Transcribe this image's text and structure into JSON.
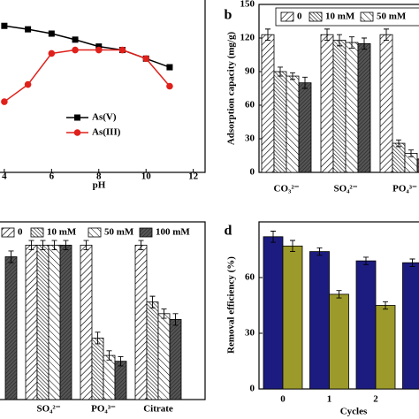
{
  "chart_data": [
    {
      "type": "line",
      "xlabel": "pH",
      "xlim": [
        1.5,
        12.5
      ],
      "xticks": [
        4,
        6,
        8,
        10,
        12
      ],
      "ylim": [
        0,
        100
      ],
      "x": [
        4,
        5,
        6,
        7,
        8,
        9,
        10,
        11
      ],
      "series": [
        {
          "name": "As(V)",
          "color": "#000000",
          "marker": "square",
          "values": [
            85,
            83,
            80.5,
            77,
            73,
            71,
            66,
            61
          ]
        },
        {
          "name": "As(III)",
          "color": "#e0201b",
          "marker": "circle",
          "values": [
            41,
            51,
            69,
            71,
            71,
            71,
            66,
            50
          ]
        }
      ]
    },
    {
      "type": "bar",
      "panel_label": "b",
      "ylabel": "Adsorption capacity (mg/g)",
      "ylim": [
        0,
        150
      ],
      "yticks": [
        0,
        30,
        60,
        90,
        120,
        150
      ],
      "categories": [
        "CO₃²⁻",
        "SO₄²⁻",
        "PO₄³⁻"
      ],
      "series": [
        {
          "name": "0",
          "color": "#ffffff",
          "pattern": "forward-hatch",
          "values": [
            123,
            123,
            123
          ],
          "errors": [
            5,
            5,
            5
          ]
        },
        {
          "name": "10 mM",
          "color": "#ffffff",
          "pattern": "dense-back-hatch",
          "values": [
            90,
            118,
            26
          ],
          "errors": [
            4,
            5,
            3
          ]
        },
        {
          "name": "50 mM",
          "color": "#ffffff",
          "pattern": "back-hatch",
          "values": [
            86,
            116,
            17
          ],
          "errors": [
            3,
            5,
            3
          ]
        },
        {
          "color": "#555555",
          "pattern": "dark-hatch",
          "values": [
            80,
            115,
            12
          ],
          "errors": [
            5,
            5,
            3
          ]
        }
      ]
    },
    {
      "type": "bar",
      "ylim": [
        0,
        150
      ],
      "categories": [
        null,
        "SO₄²⁻",
        "PO₄³⁻",
        "Citrate"
      ],
      "series": [
        {
          "name": "0",
          "color": "#ffffff",
          "pattern": "forward-hatch",
          "values": [
            null,
            133,
            133,
            133
          ],
          "errors": [
            null,
            4,
            4,
            4
          ]
        },
        {
          "name": "10 mM",
          "color": "#ffffff",
          "pattern": "dense-back-hatch",
          "values": [
            null,
            133,
            53,
            84
          ],
          "errors": [
            null,
            4,
            5,
            5
          ]
        },
        {
          "name": "50 mM",
          "color": "#ffffff",
          "pattern": "back-hatch",
          "values": [
            null,
            133,
            38,
            74
          ],
          "errors": [
            null,
            4,
            4,
            4
          ]
        },
        {
          "name": "100 mM",
          "color": "#555555",
          "pattern": "dark-hatch",
          "values": [
            123,
            133,
            33,
            69
          ],
          "errors": [
            5,
            4,
            4,
            5
          ]
        }
      ]
    },
    {
      "type": "bar",
      "panel_label": "d",
      "ylabel": "Removal efficiency (%)",
      "xlabel": "Cycles",
      "ylim": [
        0,
        90
      ],
      "yticks": [
        0,
        30,
        60
      ],
      "categories": [
        "0",
        "1",
        "2",
        null
      ],
      "series": [
        {
          "color": "#1c1c80",
          "values": [
            82,
            74,
            69,
            68
          ],
          "errors": [
            3,
            2,
            2,
            2
          ]
        },
        {
          "color": "#9c9a2a",
          "values": [
            77,
            51,
            45,
            null
          ],
          "errors": [
            3,
            2,
            2,
            null
          ]
        }
      ]
    }
  ]
}
